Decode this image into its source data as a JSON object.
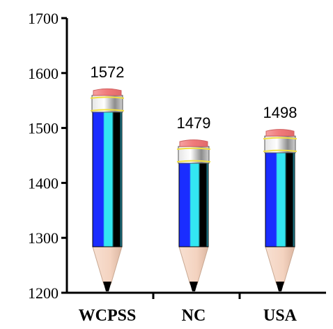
{
  "chart_data": {
    "type": "bar",
    "categories": [
      "WCPSS",
      "NC",
      "USA"
    ],
    "values": [
      1572,
      1479,
      1498
    ],
    "data_labels": [
      "1572",
      "1479",
      "1498"
    ],
    "ylim": [
      1200,
      1700
    ],
    "yticks": [
      "1200",
      "1300",
      "1400",
      "1500",
      "1600",
      "1700"
    ],
    "grid": false,
    "legend": "none",
    "bar_style": "pencil",
    "colors": {
      "body_dark": "#1a2dff",
      "body_light": "#33e6f2",
      "body_edge": "#000000",
      "eraser": "#f07a7a",
      "ferrule": "#bfbfbf",
      "ferrule_band": "#f2e040",
      "wood": "#f4d3c0",
      "lead": "#000000"
    }
  }
}
